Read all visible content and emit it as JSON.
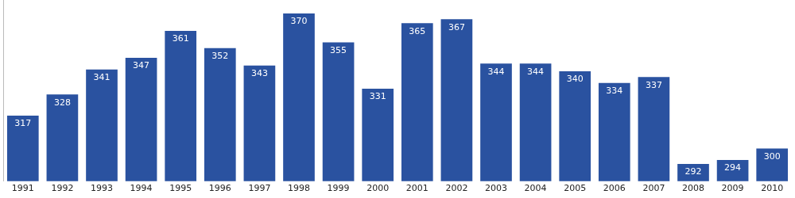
{
  "chart_data": {
    "type": "bar",
    "categories": [
      "1991",
      "1992",
      "1993",
      "1994",
      "1995",
      "1996",
      "1997",
      "1998",
      "1999",
      "2000",
      "2001",
      "2002",
      "2003",
      "2004",
      "2005",
      "2006",
      "2007",
      "2008",
      "2009",
      "2010"
    ],
    "values": [
      317,
      328,
      341,
      347,
      361,
      352,
      343,
      370,
      355,
      331,
      365,
      367,
      344,
      344,
      340,
      334,
      337,
      292,
      294,
      300
    ],
    "color": "#2a52a0",
    "ylim": [
      283,
      377
    ],
    "grid": false,
    "data_labels": true,
    "tick_labels": "x"
  }
}
